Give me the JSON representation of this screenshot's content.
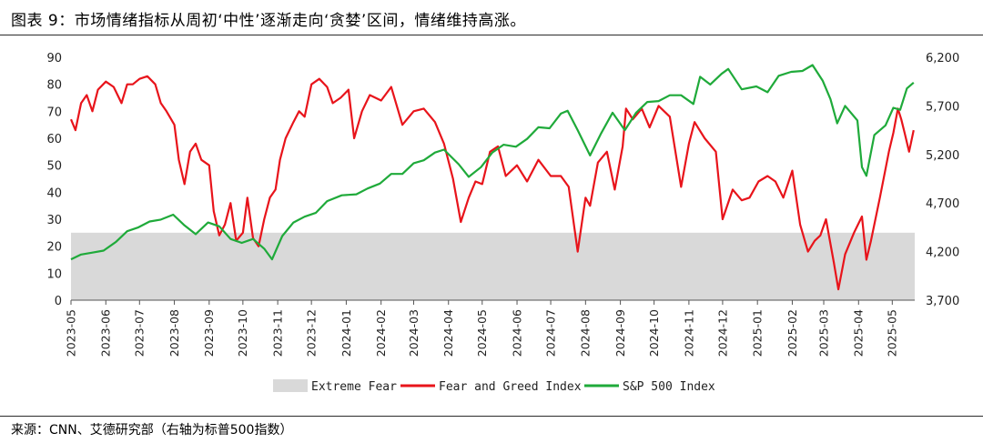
{
  "header": {
    "title": "图表 9：市场情绪指标从周初‘中性’逐渐走向‘贪婪’区间，情绪维持高涨。"
  },
  "footer": {
    "source": "来源：CNN、艾德研究部（右轴为标普500指数）"
  },
  "colors": {
    "fear_greed": "#e8141b",
    "sp500": "#1faa3a",
    "extreme_fear": "#d9d9d9"
  },
  "chart_data": {
    "type": "line",
    "left_axis": {
      "ticks": [
        "0",
        "10",
        "20",
        "30",
        "40",
        "50",
        "60",
        "70",
        "80",
        "90"
      ],
      "ylim": [
        0,
        90
      ]
    },
    "right_axis": {
      "ticks": [
        "3,700",
        "4,200",
        "4,700",
        "5,200",
        "5,700",
        "6,200"
      ],
      "ylim": [
        3700,
        6200
      ]
    },
    "x_ticks": [
      "2023-05",
      "2023-06",
      "2023-07",
      "2023-08",
      "2023-09",
      "2023-10",
      "2023-11",
      "2023-12",
      "2024-01",
      "2024-02",
      "2024-03",
      "2024-04",
      "2024-05",
      "2024-06",
      "2024-07",
      "2024-08",
      "2024-09",
      "2024-10",
      "2024-11",
      "2024-12",
      "2025-01",
      "2025-02",
      "2025-03",
      "2025-04",
      "2025-05"
    ],
    "extreme_fear_band": [
      0,
      25
    ],
    "legend": [
      "Extreme Fear",
      "Fear and Greed Index",
      "S&P 500 Index"
    ],
    "legend_position": "bottom",
    "grid": false,
    "series": [
      {
        "name": "Fear and Greed Index",
        "axis": "left",
        "x": [
          "2023-05-01",
          "2023-05-05",
          "2023-05-10",
          "2023-05-15",
          "2023-05-20",
          "2023-05-25",
          "2023-06-01",
          "2023-06-08",
          "2023-06-15",
          "2023-06-20",
          "2023-06-25",
          "2023-07-01",
          "2023-07-08",
          "2023-07-15",
          "2023-07-20",
          "2023-07-25",
          "2023-08-01",
          "2023-08-05",
          "2023-08-10",
          "2023-08-15",
          "2023-08-20",
          "2023-08-25",
          "2023-09-01",
          "2023-09-05",
          "2023-09-10",
          "2023-09-15",
          "2023-09-20",
          "2023-09-25",
          "2023-10-01",
          "2023-10-05",
          "2023-10-10",
          "2023-10-15",
          "2023-10-20",
          "2023-10-25",
          "2023-10-30",
          "2023-11-03",
          "2023-11-08",
          "2023-11-15",
          "2023-11-20",
          "2023-11-25",
          "2023-12-01",
          "2023-12-08",
          "2023-12-15",
          "2023-12-20",
          "2023-12-27",
          "2024-01-03",
          "2024-01-08",
          "2024-01-15",
          "2024-01-22",
          "2024-02-01",
          "2024-02-10",
          "2024-02-20",
          "2024-03-01",
          "2024-03-10",
          "2024-03-20",
          "2024-03-28",
          "2024-04-05",
          "2024-04-12",
          "2024-04-19",
          "2024-04-25",
          "2024-05-01",
          "2024-05-08",
          "2024-05-15",
          "2024-05-22",
          "2024-06-01",
          "2024-06-10",
          "2024-06-20",
          "2024-07-01",
          "2024-07-10",
          "2024-07-17",
          "2024-07-25",
          "2024-08-01",
          "2024-08-05",
          "2024-08-12",
          "2024-08-20",
          "2024-08-27",
          "2024-09-03",
          "2024-09-06",
          "2024-09-12",
          "2024-09-20",
          "2024-09-27",
          "2024-10-05",
          "2024-10-15",
          "2024-10-25",
          "2024-11-01",
          "2024-11-06",
          "2024-11-15",
          "2024-11-25",
          "2024-12-01",
          "2024-12-10",
          "2024-12-18",
          "2024-12-25",
          "2025-01-02",
          "2025-01-10",
          "2025-01-17",
          "2025-01-24",
          "2025-02-01",
          "2025-02-08",
          "2025-02-15",
          "2025-02-21",
          "2025-02-26",
          "2025-03-03",
          "2025-03-10",
          "2025-03-14",
          "2025-03-20",
          "2025-03-28",
          "2025-04-04",
          "2025-04-08",
          "2025-04-12",
          "2025-04-20",
          "2025-04-28",
          "2025-05-02",
          "2025-05-06",
          "2025-05-09",
          "2025-05-12",
          "2025-05-16",
          "2025-05-20"
        ],
        "values": [
          67,
          63,
          73,
          76,
          70,
          78,
          81,
          79,
          73,
          80,
          80,
          82,
          83,
          80,
          73,
          70,
          65,
          52,
          43,
          55,
          58,
          52,
          50,
          33,
          24,
          28,
          36,
          22,
          25,
          38,
          23,
          20,
          30,
          38,
          41,
          52,
          60,
          66,
          70,
          68,
          80,
          82,
          79,
          73,
          75,
          78,
          60,
          70,
          76,
          74,
          79,
          65,
          70,
          71,
          66,
          58,
          45,
          29,
          38,
          44,
          43,
          55,
          57,
          46,
          50,
          44,
          52,
          46,
          46,
          42,
          18,
          38,
          35,
          51,
          55,
          41,
          57,
          71,
          67,
          71,
          64,
          72,
          68,
          42,
          58,
          66,
          60,
          55,
          30,
          41,
          37,
          38,
          44,
          46,
          44,
          38,
          48,
          28,
          18,
          22,
          24,
          30,
          14,
          4,
          17,
          25,
          31,
          15,
          22,
          38,
          55,
          62,
          71,
          67,
          62,
          55,
          63
        ]
      },
      {
        "name": "S&P 500 Index",
        "axis": "right",
        "x": [
          "2023-05-01",
          "2023-05-10",
          "2023-05-20",
          "2023-05-30",
          "2023-06-10",
          "2023-06-20",
          "2023-06-30",
          "2023-07-10",
          "2023-07-20",
          "2023-07-31",
          "2023-08-10",
          "2023-08-20",
          "2023-08-31",
          "2023-09-10",
          "2023-09-20",
          "2023-09-30",
          "2023-10-10",
          "2023-10-20",
          "2023-10-27",
          "2023-11-05",
          "2023-11-15",
          "2023-11-25",
          "2023-12-05",
          "2023-12-15",
          "2023-12-28",
          "2024-01-10",
          "2024-01-20",
          "2024-01-31",
          "2024-02-10",
          "2024-02-20",
          "2024-03-01",
          "2024-03-10",
          "2024-03-20",
          "2024-03-28",
          "2024-04-10",
          "2024-04-19",
          "2024-04-30",
          "2024-05-10",
          "2024-05-20",
          "2024-05-31",
          "2024-06-10",
          "2024-06-20",
          "2024-06-30",
          "2024-07-10",
          "2024-07-16",
          "2024-07-25",
          "2024-08-05",
          "2024-08-15",
          "2024-08-25",
          "2024-09-05",
          "2024-09-15",
          "2024-09-25",
          "2024-10-05",
          "2024-10-15",
          "2024-10-25",
          "2024-11-05",
          "2024-11-11",
          "2024-11-20",
          "2024-11-30",
          "2024-12-06",
          "2024-12-18",
          "2024-12-31",
          "2025-01-10",
          "2025-01-20",
          "2025-01-31",
          "2025-02-10",
          "2025-02-19",
          "2025-02-28",
          "2025-03-07",
          "2025-03-13",
          "2025-03-20",
          "2025-03-31",
          "2025-04-04",
          "2025-04-08",
          "2025-04-15",
          "2025-04-25",
          "2025-05-02",
          "2025-05-08",
          "2025-05-14",
          "2025-05-20"
        ],
        "values": [
          4120,
          4170,
          4190,
          4210,
          4300,
          4410,
          4450,
          4510,
          4530,
          4580,
          4470,
          4380,
          4500,
          4460,
          4330,
          4290,
          4330,
          4230,
          4120,
          4360,
          4500,
          4560,
          4600,
          4720,
          4780,
          4790,
          4850,
          4900,
          5000,
          5000,
          5110,
          5140,
          5220,
          5250,
          5100,
          4970,
          5070,
          5220,
          5300,
          5280,
          5360,
          5480,
          5470,
          5620,
          5650,
          5450,
          5190,
          5420,
          5630,
          5450,
          5630,
          5740,
          5750,
          5810,
          5810,
          5720,
          6000,
          5920,
          6030,
          6080,
          5870,
          5900,
          5840,
          6010,
          6050,
          6060,
          6120,
          5960,
          5770,
          5520,
          5700,
          5550,
          5070,
          4980,
          5400,
          5500,
          5680,
          5660,
          5880,
          5940
        ]
      }
    ]
  }
}
